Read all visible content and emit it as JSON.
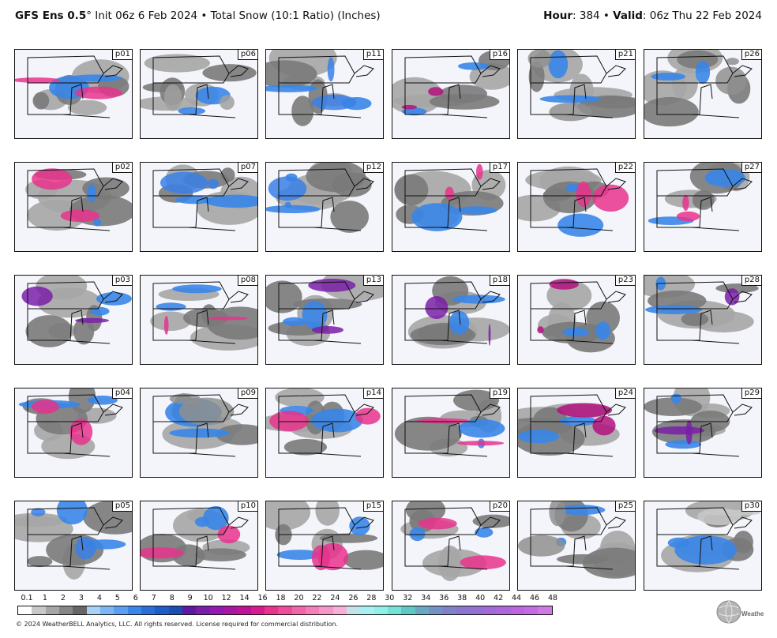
{
  "header": {
    "model": "GFS Ens 0.5",
    "degree": "°",
    "init": " Init 06z 6 Feb 2024",
    "sep": " • ",
    "field": "Total Snow (10:1 Ratio) (Inches)",
    "hour_label": "Hour",
    "hour_value": ": 384",
    "valid_label": "Valid",
    "valid_value": ": 06z Thu 22 Feb 2024"
  },
  "panels": [
    {
      "id": "p01",
      "accent": "#e8338c"
    },
    {
      "id": "p06",
      "accent": "#a0a0a0"
    },
    {
      "id": "p11",
      "accent": "#3a80e8"
    },
    {
      "id": "p16",
      "accent": "#b1127e"
    },
    {
      "id": "p21",
      "accent": "#8f8f8f"
    },
    {
      "id": "p26",
      "accent": "#8f8f8f"
    },
    {
      "id": "p02",
      "accent": "#e8338c"
    },
    {
      "id": "p07",
      "accent": "#3a80e8"
    },
    {
      "id": "p12",
      "accent": "#3a80e8"
    },
    {
      "id": "p17",
      "accent": "#e8338c"
    },
    {
      "id": "p22",
      "accent": "#e8338c"
    },
    {
      "id": "p27",
      "accent": "#e8338c"
    },
    {
      "id": "p03",
      "accent": "#7a1ea8"
    },
    {
      "id": "p08",
      "accent": "#e8338c"
    },
    {
      "id": "p13",
      "accent": "#7a1ea8"
    },
    {
      "id": "p18",
      "accent": "#7a1ea8"
    },
    {
      "id": "p23",
      "accent": "#b1127e"
    },
    {
      "id": "p28",
      "accent": "#7a1ea8"
    },
    {
      "id": "p04",
      "accent": "#e8338c"
    },
    {
      "id": "p09",
      "accent": "#8f8f8f"
    },
    {
      "id": "p14",
      "accent": "#e8338c"
    },
    {
      "id": "p19",
      "accent": "#e8338c"
    },
    {
      "id": "p24",
      "accent": "#b1127e"
    },
    {
      "id": "p29",
      "accent": "#7a1ea8"
    },
    {
      "id": "p05",
      "accent": "#3a80e8"
    },
    {
      "id": "p10",
      "accent": "#e8338c"
    },
    {
      "id": "p15",
      "accent": "#e8338c"
    },
    {
      "id": "p20",
      "accent": "#e8338c"
    },
    {
      "id": "p25",
      "accent": "#8f8f8f"
    },
    {
      "id": "p30",
      "accent": "#c8c8c8"
    }
  ],
  "colorbar": {
    "colors": [
      "#ffffff",
      "#c8c8c8",
      "#a6a6a6",
      "#868686",
      "#666666",
      "#a9d0f5",
      "#7db6f3",
      "#5a9ff0",
      "#3a86e8",
      "#2a6fd8",
      "#1f5cc6",
      "#1b4eb0",
      "#5c1aa0",
      "#7a1ea8",
      "#931ab0",
      "#a815a0",
      "#c01294",
      "#d81a8c",
      "#e8338c",
      "#ee4c9a",
      "#f066a8",
      "#f27fb8",
      "#f597c6",
      "#f7afd3",
      "#c2e3ea",
      "#a9eef0",
      "#8ff0ea",
      "#74e2d6",
      "#63c6c6",
      "#6aa7c1",
      "#7592c4",
      "#8082c8",
      "#8a77cc",
      "#9570d1",
      "#a26ad6",
      "#ae67da",
      "#bb66de",
      "#c56ae0",
      "#cf7ae4"
    ],
    "tick_labels": [
      "0.1",
      "1",
      "2",
      "3",
      "4",
      "5",
      "6",
      "7",
      "8",
      "9",
      "10",
      "12",
      "14",
      "16",
      "18",
      "20",
      "22",
      "24",
      "26",
      "28",
      "30",
      "32",
      "34",
      "36",
      "38",
      "40",
      "42",
      "44",
      "46",
      "48"
    ]
  },
  "footer": "© 2024 WeatherBELL Analytics, LLC. All rights reserved. License required for commercial distribution.",
  "logo": {
    "text": "WeatherBELL",
    "icon": "weatherbell-globe-logo"
  }
}
